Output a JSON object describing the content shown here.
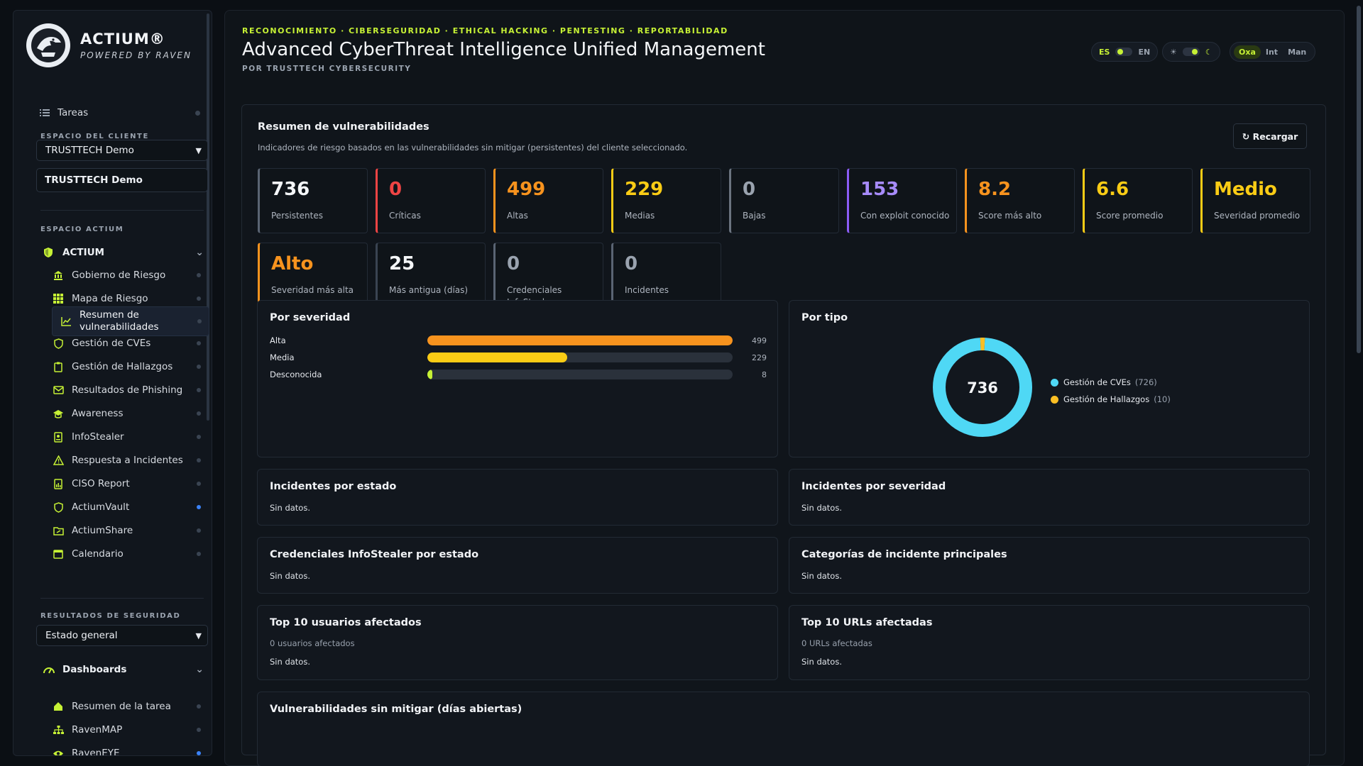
{
  "brand": {
    "name": "ACTIUM®",
    "sub": "POWERED BY RAVEN"
  },
  "sidebar": {
    "tasks_label": "Tareas",
    "client_section": "ESPACIO DEL CLIENTE",
    "client_select": "TRUSTTECH Demo",
    "client_name": "TRUSTTECH Demo",
    "actium_section": "ESPACIO ACTIUM",
    "actium_group": "ACTIUM",
    "actium_items": [
      {
        "label": "Gobierno de Riesgo",
        "icon": "bank-icon"
      },
      {
        "label": "Mapa de Riesgo",
        "icon": "grid-icon"
      },
      {
        "label": "Resumen de vulnerabilidades",
        "icon": "chart-line-icon"
      },
      {
        "label": "Gestión de CVEs",
        "icon": "shield-icon"
      },
      {
        "label": "Gestión de Hallazgos",
        "icon": "clipboard-icon"
      },
      {
        "label": "Resultados de Phishing",
        "icon": "mail-icon"
      },
      {
        "label": "Awareness",
        "icon": "graduation-icon"
      },
      {
        "label": "InfoStealer",
        "icon": "id-card-icon"
      },
      {
        "label": "Respuesta a Incidentes",
        "icon": "warning-icon"
      },
      {
        "label": "CISO Report",
        "icon": "report-icon"
      },
      {
        "label": "ActiumVault",
        "icon": "shield-icon"
      },
      {
        "label": "ActiumShare",
        "icon": "folder-share-icon"
      },
      {
        "label": "Calendario",
        "icon": "calendar-icon"
      }
    ],
    "security_section": "RESULTADOS DE SEGURIDAD",
    "security_select": "Estado general",
    "dashboards_group": "Dashboards",
    "dashboard_items": [
      {
        "label": "Resumen de la tarea",
        "icon": "home-icon"
      },
      {
        "label": "RavenMAP",
        "icon": "sitemap-icon"
      },
      {
        "label": "RavenEYE",
        "icon": "eye-icon"
      }
    ]
  },
  "header": {
    "tagline": "RECONOCIMIENTO · CIBERSEGURIDAD · ETHICAL HACKING · PENTESTING · REPORTABILIDAD",
    "title": "Advanced CyberThreat Intelligence Unified Management",
    "byline": "POR TRUSTTECH CYBERSECURITY",
    "lang_left": "ES",
    "lang_right": "EN",
    "theme_sun": "☀",
    "theme_moon": "☾",
    "modes": [
      "Oxa",
      "Int",
      "Man"
    ]
  },
  "summary": {
    "title": "Resumen de vulnerabilidades",
    "subtitle": "Indicadores de riesgo basados en las vulnerabilidades sin mitigar (persistentes) del cliente seleccionado.",
    "reload": "↻ Recargar",
    "stats_row1": [
      {
        "value": "736",
        "label": "Persistentes",
        "color": "#f4f6f8",
        "border": "#5a6473"
      },
      {
        "value": "0",
        "label": "Críticas",
        "color": "#ef4444",
        "border": "#ef4444"
      },
      {
        "value": "499",
        "label": "Altas",
        "color": "#f7931e",
        "border": "#f7931e"
      },
      {
        "value": "229",
        "label": "Medias",
        "color": "#facc15",
        "border": "#facc15"
      },
      {
        "value": "0",
        "label": "Bajas",
        "color": "#9aa3af",
        "border": "#6b7480"
      },
      {
        "value": "153",
        "label": "Con exploit conocido",
        "color": "#a78bfa",
        "border": "#8b5cf6"
      },
      {
        "value": "8.2",
        "label": "Score más alto",
        "color": "#f7931e",
        "border": "#f7931e"
      },
      {
        "value": "6.6",
        "label": "Score promedio",
        "color": "#facc15",
        "border": "#facc15"
      },
      {
        "value": "Medio",
        "label": "Severidad promedio",
        "color": "#facc15",
        "border": "#facc15"
      }
    ],
    "stats_row2": [
      {
        "value": "Alto",
        "label": "Severidad más alta",
        "color": "#f7931e",
        "border": "#f7931e"
      },
      {
        "value": "25",
        "label": "Más antigua (días)",
        "color": "#f4f6f8",
        "border": "#3a4452"
      },
      {
        "value": "0",
        "label": "Credenciales InfoStealer",
        "color": "#9aa3af",
        "border": "#5a6473"
      },
      {
        "value": "0",
        "label": "Incidentes",
        "color": "#9aa3af",
        "border": "#5a6473"
      }
    ]
  },
  "severity": {
    "title": "Por severidad",
    "rows": [
      {
        "name": "Alta",
        "value": 499,
        "fraction": 1.0,
        "color": "#f7931e"
      },
      {
        "name": "Media",
        "value": 229,
        "fraction": 0.459,
        "color": "#facc15"
      },
      {
        "name": "Desconocida",
        "value": 8,
        "fraction": 0.016,
        "color": "#c6f135"
      }
    ]
  },
  "bytype": {
    "title": "Por tipo",
    "total": "736",
    "items": [
      {
        "name": "Gestión de CVEs",
        "count": "(726)",
        "value": 726,
        "color": "#4fd8f5"
      },
      {
        "name": "Gestión de Hallazgos",
        "count": "(10)",
        "value": 10,
        "color": "#fbbf24"
      }
    ]
  },
  "panels": {
    "inc_estado": {
      "title": "Incidentes por estado",
      "text": "Sin datos."
    },
    "inc_sev": {
      "title": "Incidentes por severidad",
      "text": "Sin datos."
    },
    "cred_estado": {
      "title": "Credenciales InfoStealer por estado",
      "text": "Sin datos."
    },
    "cat_inc": {
      "title": "Categorías de incidente principales",
      "text": "Sin datos."
    },
    "top_users": {
      "title": "Top 10 usuarios afectados",
      "sub": "0 usuarios afectados",
      "text": "Sin datos."
    },
    "top_urls": {
      "title": "Top 10 URLs afectadas",
      "sub": "0 URLs afectadas",
      "text": "Sin datos."
    },
    "vuln_open": {
      "title": "Vulnerabilidades sin mitigar (días abiertas)"
    }
  }
}
